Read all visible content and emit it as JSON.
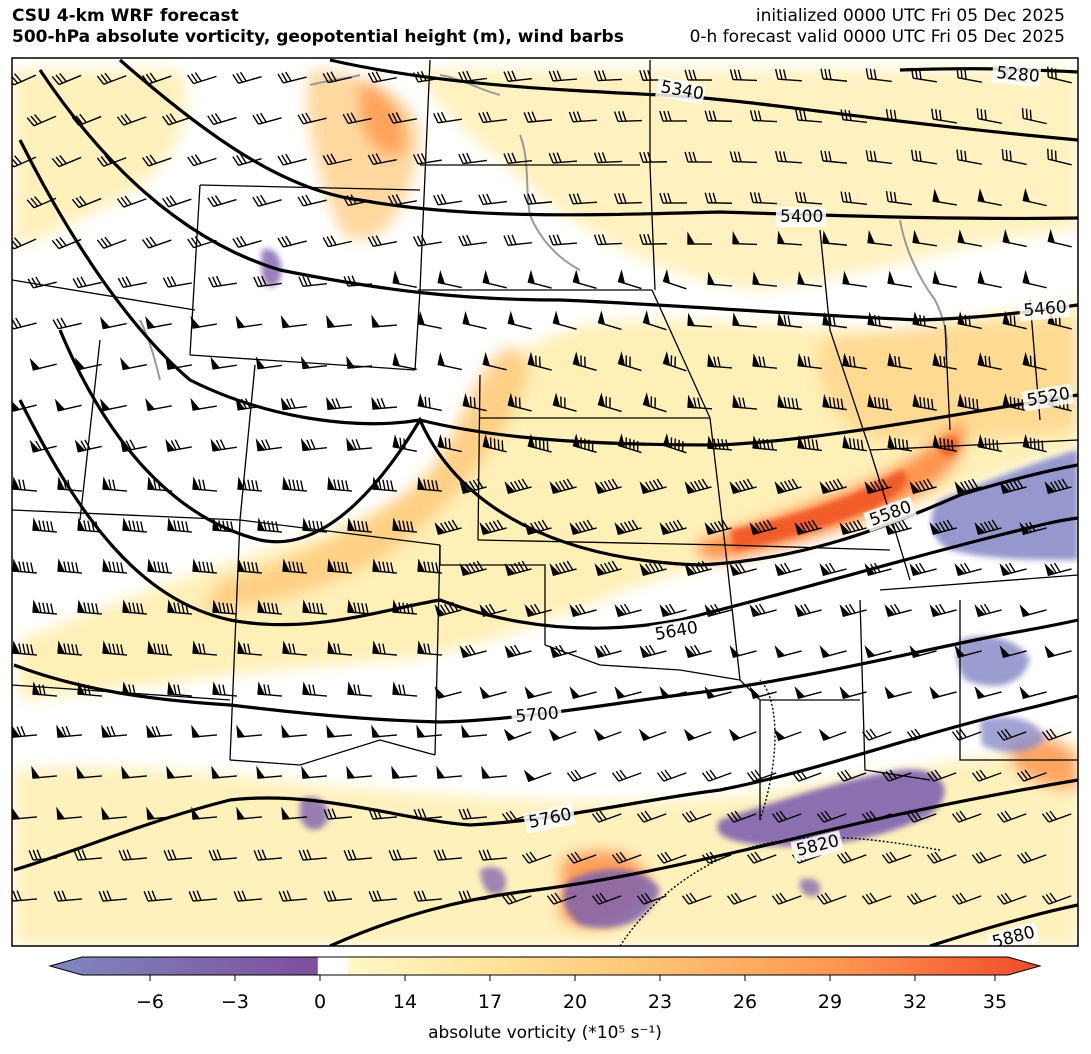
{
  "header": {
    "title": "CSU 4-km WRF forecast",
    "subtitle": "500-hPa absolute vorticity, geopotential height (m), wind barbs",
    "init": "initialized 0000 UTC Fri 05 Dec 2025",
    "valid": "0-h forecast valid 0000 UTC Fri 05 Dec 2025"
  },
  "contours": {
    "labels": [
      "5280",
      "5340",
      "5400",
      "5460",
      "5520",
      "5580",
      "5640",
      "5700",
      "5760",
      "5820",
      "5880"
    ]
  },
  "colorbar": {
    "ticks": [
      "−6",
      "−3",
      "0",
      "14",
      "17",
      "20",
      "23",
      "26",
      "29",
      "32",
      "35"
    ],
    "label": "absolute vorticity (*10⁵ s⁻¹)",
    "colors": [
      "#8088c0",
      "#8a80bc",
      "#8b70b2",
      "#8760aa",
      "#7d4e9e",
      "#ffffff",
      "#fff8c8",
      "#ffeaa0",
      "#ffd88a",
      "#ffc070",
      "#ffa458",
      "#ff8a45",
      "#fb6d38",
      "#f04a2a"
    ]
  },
  "colors": {
    "weak_pos": "#ffeeb0",
    "mod_pos": "#ffc878",
    "strong_pos": "#ff8c40",
    "max_pos": "#f05a28",
    "neg": "#7e60ae",
    "neg_light": "#8a8cc8",
    "lake": "#999999"
  }
}
